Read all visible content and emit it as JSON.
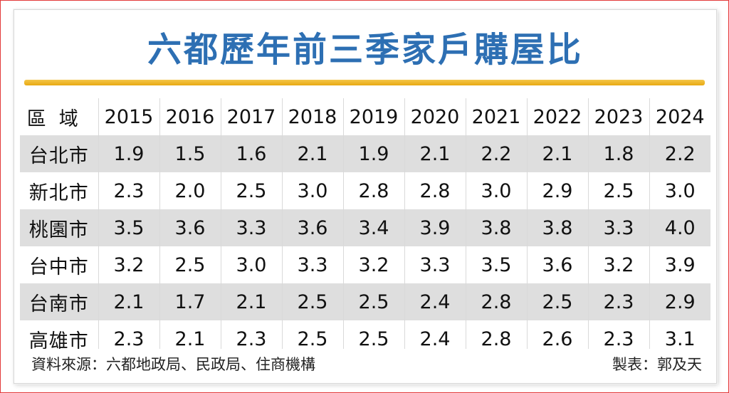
{
  "title": "六都歷年前三季家戶購屋比",
  "table": {
    "header_label": "區域",
    "years": [
      "2015",
      "2016",
      "2017",
      "2018",
      "2019",
      "2020",
      "2021",
      "2022",
      "2023",
      "2024"
    ],
    "rows": [
      {
        "region": "台北市",
        "values": [
          "1.9",
          "1.5",
          "1.6",
          "2.1",
          "1.9",
          "2.1",
          "2.2",
          "2.1",
          "1.8",
          "2.2"
        ]
      },
      {
        "region": "新北市",
        "values": [
          "2.3",
          "2.0",
          "2.5",
          "3.0",
          "2.8",
          "2.8",
          "3.0",
          "2.9",
          "2.5",
          "3.0"
        ]
      },
      {
        "region": "桃園市",
        "values": [
          "3.5",
          "3.6",
          "3.3",
          "3.6",
          "3.4",
          "3.9",
          "3.8",
          "3.8",
          "3.3",
          "4.0"
        ]
      },
      {
        "region": "台中市",
        "values": [
          "3.2",
          "2.5",
          "3.0",
          "3.3",
          "3.2",
          "3.3",
          "3.5",
          "3.6",
          "3.2",
          "3.9"
        ]
      },
      {
        "region": "台南市",
        "values": [
          "2.1",
          "1.7",
          "2.1",
          "2.5",
          "2.5",
          "2.4",
          "2.8",
          "2.5",
          "2.3",
          "2.9"
        ]
      },
      {
        "region": "高雄市",
        "values": [
          "2.3",
          "2.1",
          "2.3",
          "2.5",
          "2.5",
          "2.4",
          "2.8",
          "2.6",
          "2.3",
          "3.1"
        ]
      }
    ]
  },
  "footer": {
    "source": "資料來源：六都地政局、民政局、住商機構",
    "credit": "製表：郭及天"
  },
  "colors": {
    "title": "#2d6fb3",
    "underline": "#f4c64a",
    "stripe": "#dedede",
    "frame": "#e23a3a"
  }
}
